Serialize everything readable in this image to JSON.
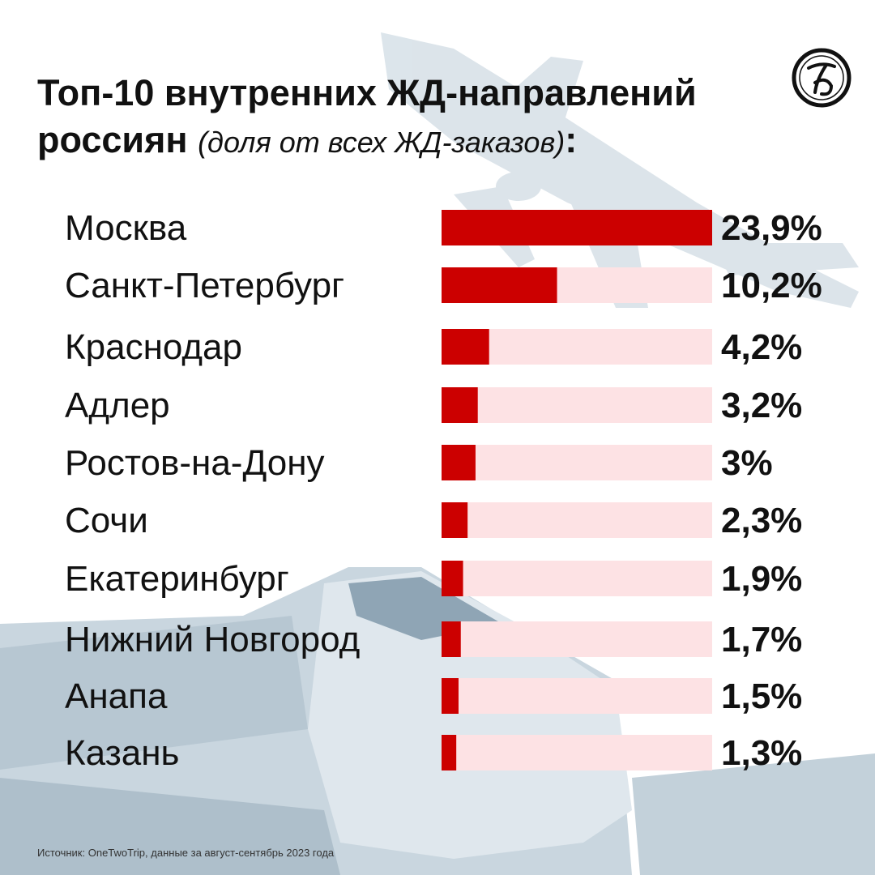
{
  "header": {
    "title_main": "Топ-10 внутренних ЖД-направлений россиян",
    "title_sub": "(доля от всех ЖД-заказов)",
    "title_colon": ":"
  },
  "logo": {
    "icon": "newspaper-monogram-logo-icon"
  },
  "colors": {
    "bar": "#cc0000",
    "track": "#fde2e4",
    "background_photo_tint": "#c7d5de"
  },
  "chart_data": {
    "type": "bar",
    "orientation": "horizontal",
    "categories": [
      "Москва",
      "Санкт-Петербург",
      "Краснодар",
      "Адлер",
      "Ростов-на-Дону",
      "Сочи",
      "Екатеринбург",
      "Нижний Новгород",
      "Анапа",
      "Казань"
    ],
    "values": [
      23.9,
      10.2,
      4.2,
      3.2,
      3,
      2.3,
      1.9,
      1.7,
      1.5,
      1.3
    ],
    "value_labels": [
      "23,9%",
      "10,2%",
      "4,2%",
      "3,2%",
      "3%",
      "2,3%",
      "1,9%",
      "1,7%",
      "1,5%",
      "1,3%"
    ],
    "xlim": [
      0,
      23.9
    ],
    "grid": false,
    "legend": "none"
  },
  "footer": {
    "source": "Источник: OneTwoTrip, данные за август-сентябрь 2023 года"
  }
}
